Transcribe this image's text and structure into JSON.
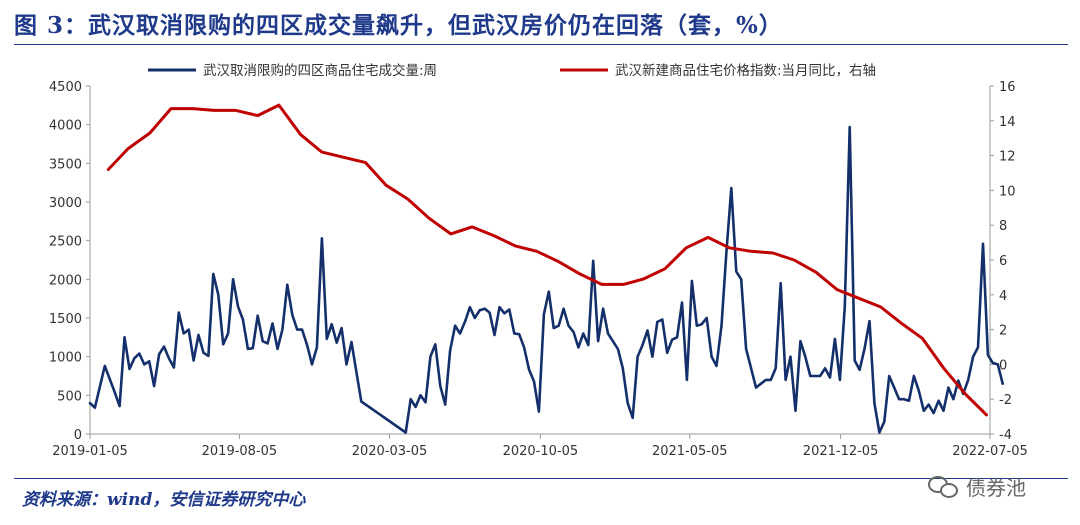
{
  "title": "图 3：武汉取消限购的四区成交量飙升，但武汉房价仍在回落（套，%）",
  "source": "资料来源：wind，安信证券研究中心",
  "watermark": "债券池",
  "chart_data": {
    "type": "line",
    "series": [
      {
        "name": "武汉取消限购的四区商品住宅成交量:周",
        "axis": "left",
        "color": "#14306b",
        "points": [
          [
            "2019-01-05",
            400
          ],
          [
            "2019-01-12",
            340
          ],
          [
            "2019-01-26",
            880
          ],
          [
            "2019-02-09",
            540
          ],
          [
            "2019-02-16",
            360
          ],
          [
            "2019-02-23",
            1250
          ],
          [
            "2019-03-02",
            840
          ],
          [
            "2019-03-09",
            980
          ],
          [
            "2019-03-16",
            1040
          ],
          [
            "2019-03-23",
            900
          ],
          [
            "2019-03-30",
            940
          ],
          [
            "2019-04-06",
            620
          ],
          [
            "2019-04-13",
            1030
          ],
          [
            "2019-04-20",
            1130
          ],
          [
            "2019-04-27",
            980
          ],
          [
            "2019-05-04",
            860
          ],
          [
            "2019-05-11",
            1570
          ],
          [
            "2019-05-18",
            1300
          ],
          [
            "2019-05-25",
            1350
          ],
          [
            "2019-06-01",
            950
          ],
          [
            "2019-06-08",
            1280
          ],
          [
            "2019-06-15",
            1050
          ],
          [
            "2019-06-22",
            1010
          ],
          [
            "2019-06-29",
            2070
          ],
          [
            "2019-07-06",
            1800
          ],
          [
            "2019-07-13",
            1160
          ],
          [
            "2019-07-20",
            1300
          ],
          [
            "2019-07-27",
            2000
          ],
          [
            "2019-08-03",
            1650
          ],
          [
            "2019-08-10",
            1480
          ],
          [
            "2019-08-17",
            1100
          ],
          [
            "2019-08-24",
            1110
          ],
          [
            "2019-08-31",
            1530
          ],
          [
            "2019-09-07",
            1200
          ],
          [
            "2019-09-14",
            1170
          ],
          [
            "2019-09-21",
            1430
          ],
          [
            "2019-09-28",
            1100
          ],
          [
            "2019-10-05",
            1350
          ],
          [
            "2019-10-12",
            1930
          ],
          [
            "2019-10-19",
            1540
          ],
          [
            "2019-10-26",
            1350
          ],
          [
            "2019-11-02",
            1350
          ],
          [
            "2019-11-09",
            1150
          ],
          [
            "2019-11-16",
            900
          ],
          [
            "2019-11-23",
            1120
          ],
          [
            "2019-11-30",
            2530
          ],
          [
            "2019-12-07",
            1230
          ],
          [
            "2019-12-14",
            1420
          ],
          [
            "2019-12-21",
            1180
          ],
          [
            "2019-12-28",
            1370
          ],
          [
            "2020-01-04",
            900
          ],
          [
            "2020-01-11",
            1190
          ],
          [
            "2020-01-18",
            800
          ],
          [
            "2020-01-25",
            420
          ],
          [
            "2020-03-28",
            20
          ],
          [
            "2020-04-04",
            450
          ],
          [
            "2020-04-11",
            350
          ],
          [
            "2020-04-18",
            500
          ],
          [
            "2020-04-25",
            410
          ],
          [
            "2020-05-02",
            1000
          ],
          [
            "2020-05-09",
            1160
          ],
          [
            "2020-05-16",
            620
          ],
          [
            "2020-05-23",
            380
          ],
          [
            "2020-05-30",
            1080
          ],
          [
            "2020-06-06",
            1400
          ],
          [
            "2020-06-13",
            1300
          ],
          [
            "2020-06-20",
            1450
          ],
          [
            "2020-06-27",
            1640
          ],
          [
            "2020-07-04",
            1500
          ],
          [
            "2020-07-11",
            1600
          ],
          [
            "2020-07-18",
            1620
          ],
          [
            "2020-07-25",
            1570
          ],
          [
            "2020-08-01",
            1280
          ],
          [
            "2020-08-08",
            1640
          ],
          [
            "2020-08-15",
            1560
          ],
          [
            "2020-08-22",
            1610
          ],
          [
            "2020-08-29",
            1300
          ],
          [
            "2020-09-05",
            1290
          ],
          [
            "2020-09-12",
            1120
          ],
          [
            "2020-09-19",
            830
          ],
          [
            "2020-09-26",
            680
          ],
          [
            "2020-10-03",
            290
          ],
          [
            "2020-10-10",
            1550
          ],
          [
            "2020-10-17",
            1840
          ],
          [
            "2020-10-24",
            1370
          ],
          [
            "2020-10-31",
            1400
          ],
          [
            "2020-11-07",
            1620
          ],
          [
            "2020-11-14",
            1400
          ],
          [
            "2020-11-21",
            1320
          ],
          [
            "2020-11-28",
            1120
          ],
          [
            "2020-12-05",
            1300
          ],
          [
            "2020-12-12",
            1150
          ],
          [
            "2020-12-19",
            2240
          ],
          [
            "2020-12-26",
            1200
          ],
          [
            "2021-01-02",
            1620
          ],
          [
            "2021-01-09",
            1300
          ],
          [
            "2021-01-16",
            1200
          ],
          [
            "2021-01-23",
            1100
          ],
          [
            "2021-01-30",
            850
          ],
          [
            "2021-02-06",
            400
          ],
          [
            "2021-02-13",
            210
          ],
          [
            "2021-02-20",
            1000
          ],
          [
            "2021-02-27",
            1150
          ],
          [
            "2021-03-06",
            1340
          ],
          [
            "2021-03-13",
            1000
          ],
          [
            "2021-03-20",
            1450
          ],
          [
            "2021-03-27",
            1480
          ],
          [
            "2021-04-03",
            1050
          ],
          [
            "2021-04-10",
            1220
          ],
          [
            "2021-04-17",
            1250
          ],
          [
            "2021-04-24",
            1700
          ],
          [
            "2021-05-01",
            700
          ],
          [
            "2021-05-08",
            1980
          ],
          [
            "2021-05-15",
            1400
          ],
          [
            "2021-05-22",
            1420
          ],
          [
            "2021-05-29",
            1500
          ],
          [
            "2021-06-05",
            1000
          ],
          [
            "2021-06-12",
            880
          ],
          [
            "2021-06-19",
            1400
          ],
          [
            "2021-06-26",
            2350
          ],
          [
            "2021-07-03",
            3180
          ],
          [
            "2021-07-10",
            2100
          ],
          [
            "2021-07-17",
            2000
          ],
          [
            "2021-07-24",
            1100
          ],
          [
            "2021-07-31",
            850
          ],
          [
            "2021-08-07",
            600
          ],
          [
            "2021-08-14",
            650
          ],
          [
            "2021-08-21",
            700
          ],
          [
            "2021-08-28",
            700
          ],
          [
            "2021-09-04",
            850
          ],
          [
            "2021-09-11",
            1950
          ],
          [
            "2021-09-18",
            700
          ],
          [
            "2021-09-25",
            1000
          ],
          [
            "2021-10-02",
            300
          ],
          [
            "2021-10-09",
            1200
          ],
          [
            "2021-10-16",
            1000
          ],
          [
            "2021-10-23",
            750
          ],
          [
            "2021-10-30",
            750
          ],
          [
            "2021-11-06",
            750
          ],
          [
            "2021-11-13",
            850
          ],
          [
            "2021-11-20",
            730
          ],
          [
            "2021-11-27",
            1230
          ],
          [
            "2021-12-04",
            700
          ],
          [
            "2021-12-11",
            1650
          ],
          [
            "2021-12-18",
            3970
          ],
          [
            "2021-12-25",
            950
          ],
          [
            "2022-01-01",
            830
          ],
          [
            "2022-01-08",
            1100
          ],
          [
            "2022-01-15",
            1460
          ],
          [
            "2022-01-22",
            400
          ],
          [
            "2022-01-29",
            20
          ],
          [
            "2022-02-05",
            160
          ],
          [
            "2022-02-12",
            750
          ],
          [
            "2022-02-19",
            600
          ],
          [
            "2022-02-26",
            450
          ],
          [
            "2022-03-05",
            450
          ],
          [
            "2022-03-12",
            430
          ],
          [
            "2022-03-19",
            750
          ],
          [
            "2022-03-26",
            560
          ],
          [
            "2022-04-02",
            300
          ],
          [
            "2022-04-09",
            380
          ],
          [
            "2022-04-16",
            270
          ],
          [
            "2022-04-23",
            430
          ],
          [
            "2022-04-30",
            300
          ],
          [
            "2022-05-07",
            600
          ],
          [
            "2022-05-14",
            450
          ],
          [
            "2022-05-21",
            690
          ],
          [
            "2022-05-28",
            520
          ],
          [
            "2022-06-04",
            700
          ],
          [
            "2022-06-11",
            1000
          ],
          [
            "2022-06-18",
            1120
          ],
          [
            "2022-06-25",
            2460
          ],
          [
            "2022-07-02",
            1020
          ],
          [
            "2022-07-09",
            920
          ],
          [
            "2022-07-16",
            900
          ],
          [
            "2022-07-23",
            650
          ]
        ]
      },
      {
        "name": "武汉新建商品住宅价格指数:当月同比，右轴",
        "axis": "right",
        "color": "#c00000",
        "points": [
          [
            "2019-01-31",
            11.2
          ],
          [
            "2019-02-28",
            12.4
          ],
          [
            "2019-03-31",
            13.3
          ],
          [
            "2019-04-30",
            14.7
          ],
          [
            "2019-05-31",
            14.7
          ],
          [
            "2019-06-30",
            14.6
          ],
          [
            "2019-07-31",
            14.6
          ],
          [
            "2019-08-31",
            14.3
          ],
          [
            "2019-09-30",
            14.9
          ],
          [
            "2019-10-31",
            13.2
          ],
          [
            "2019-11-30",
            12.2
          ],
          [
            "2019-12-31",
            11.9
          ],
          [
            "2020-01-31",
            11.6
          ],
          [
            "2020-02-29",
            10.3
          ],
          [
            "2020-03-31",
            9.5
          ],
          [
            "2020-04-30",
            8.4
          ],
          [
            "2020-05-31",
            7.5
          ],
          [
            "2020-06-30",
            7.9
          ],
          [
            "2020-07-31",
            7.4
          ],
          [
            "2020-08-31",
            6.8
          ],
          [
            "2020-09-30",
            6.5
          ],
          [
            "2020-10-31",
            5.9
          ],
          [
            "2020-11-30",
            5.2
          ],
          [
            "2020-12-31",
            4.6
          ],
          [
            "2021-01-31",
            4.6
          ],
          [
            "2021-02-28",
            4.9
          ],
          [
            "2021-03-31",
            5.5
          ],
          [
            "2021-04-30",
            6.7
          ],
          [
            "2021-05-31",
            7.3
          ],
          [
            "2021-06-30",
            6.7
          ],
          [
            "2021-07-31",
            6.5
          ],
          [
            "2021-08-31",
            6.4
          ],
          [
            "2021-09-30",
            6.0
          ],
          [
            "2021-10-31",
            5.3
          ],
          [
            "2021-11-30",
            4.3
          ],
          [
            "2021-12-31",
            3.8
          ],
          [
            "2022-01-31",
            3.3
          ],
          [
            "2022-02-28",
            2.4
          ],
          [
            "2022-03-31",
            1.5
          ],
          [
            "2022-04-30",
            -0.2
          ],
          [
            "2022-05-31",
            -1.7
          ],
          [
            "2022-06-30",
            -2.9
          ]
        ]
      }
    ],
    "x_ticks": [
      "2019-01-05",
      "2019-08-05",
      "2020-03-05",
      "2020-10-05",
      "2021-05-05",
      "2021-12-05",
      "2022-07-05"
    ],
    "x_range": [
      "2019-01-05",
      "2022-07-05"
    ],
    "y_left": {
      "min": 0,
      "max": 4500,
      "ticks": [
        0,
        500,
        1000,
        1500,
        2000,
        2500,
        3000,
        3500,
        4000,
        4500
      ]
    },
    "y_right": {
      "min": -4,
      "max": 16,
      "ticks": [
        -4,
        -2,
        0,
        2,
        4,
        6,
        8,
        10,
        12,
        14,
        16
      ]
    },
    "legend_position": "top",
    "grid": false
  }
}
